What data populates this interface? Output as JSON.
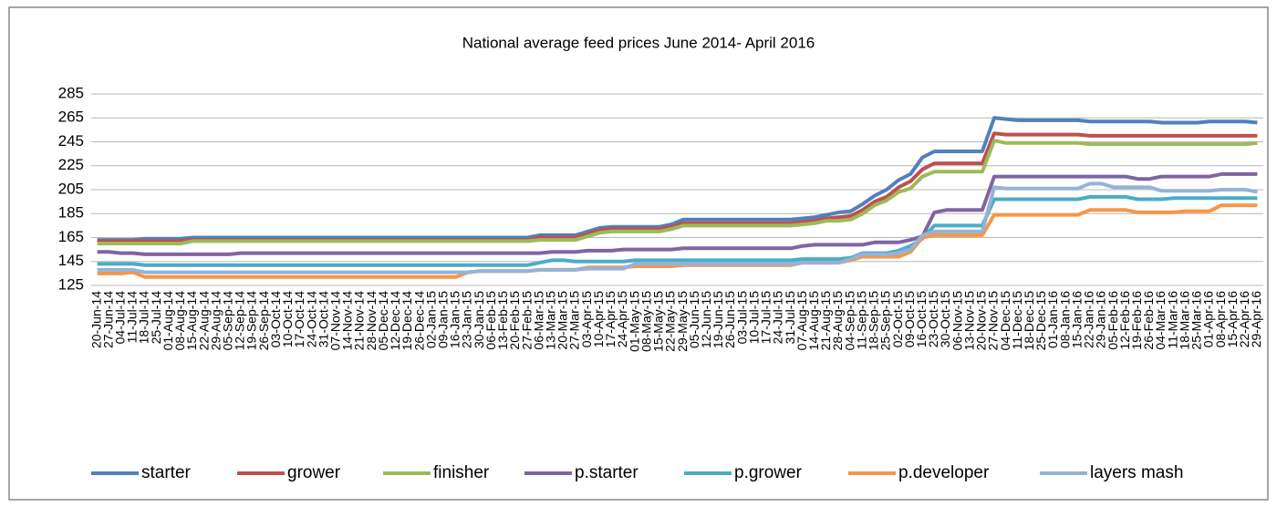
{
  "chart_data": {
    "type": "line",
    "title": "National average feed prices June 2014- April 2016",
    "categories": [
      "20-Jun-14",
      "27-Jun-14",
      "04-Jul-14",
      "11-Jul-14",
      "18-Jul-14",
      "25-Jul-14",
      "01-Aug-14",
      "08-Aug-14",
      "15-Aug-14",
      "22-Aug-14",
      "29-Aug-14",
      "05-Sep-14",
      "12-Sep-14",
      "19-Sep-14",
      "26-Sep-14",
      "03-Oct-14",
      "10-Oct-14",
      "17-Oct-14",
      "24-Oct-14",
      "31-Oct-14",
      "07-Nov-14",
      "14-Nov-14",
      "21-Nov-14",
      "28-Nov-14",
      "05-Dec-14",
      "12-Dec-14",
      "19-Dec-14",
      "26-Dec-14",
      "02-Jan-15",
      "09-Jan-15",
      "16-Jan-15",
      "23-Jan-15",
      "30-Jan-15",
      "06-Feb-15",
      "13-Feb-15",
      "20-Feb-15",
      "27-Feb-15",
      "06-Mar-15",
      "13-Mar-15",
      "20-Mar-15",
      "27-Mar-15",
      "03-Apr-15",
      "10-Apr-15",
      "17-Apr-15",
      "24-Apr-15",
      "01-May-15",
      "08-May-15",
      "15-May-15",
      "22-May-15",
      "29-May-15",
      "05-Jun-15",
      "12-Jun-15",
      "19-Jun-15",
      "26-Jun-15",
      "03-Jul-15",
      "10-Jul-15",
      "17-Jul-15",
      "24-Jul-15",
      "31-Jul-15",
      "07-Aug-15",
      "14-Aug-15",
      "21-Aug-15",
      "28-Aug-15",
      "04-Sep-15",
      "11-Sep-15",
      "18-Sep-15",
      "25-Sep-15",
      "02-Oct-15",
      "09-Oct-15",
      "16-Oct-15",
      "23-Oct-15",
      "30-Oct-15",
      "06-Nov-15",
      "13-Nov-15",
      "20-Nov-15",
      "27-Nov-15",
      "04-Dec-15",
      "11-Dec-15",
      "18-Dec-15",
      "25-Dec-15",
      "01-Jan-16",
      "08-Jan-16",
      "15-Jan-16",
      "22-Jan-16",
      "29-Jan-16",
      "05-Feb-16",
      "12-Feb-16",
      "19-Feb-16",
      "26-Feb-16",
      "04-Mar-16",
      "11-Mar-16",
      "18-Mar-16",
      "25-Mar-16",
      "01-Apr-16",
      "08-Apr-16",
      "15-Apr-16",
      "22-Apr-16",
      "29-Apr-16"
    ],
    "series": [
      {
        "name": "starter",
        "color": "#4f81bd",
        "values": [
          163,
          163,
          163,
          163,
          164,
          164,
          164,
          164,
          165,
          165,
          165,
          165,
          165,
          165,
          165,
          165,
          165,
          165,
          165,
          165,
          165,
          165,
          165,
          165,
          165,
          165,
          165,
          165,
          165,
          165,
          165,
          165,
          165,
          165,
          165,
          165,
          165,
          167,
          167,
          167,
          167,
          170,
          173,
          174,
          174,
          174,
          174,
          174,
          176,
          180,
          180,
          180,
          180,
          180,
          180,
          180,
          180,
          180,
          180,
          181,
          182,
          184,
          186,
          187,
          193,
          200,
          205,
          213,
          218,
          232,
          237,
          237,
          237,
          237,
          237,
          265,
          264,
          263,
          263,
          263,
          263,
          263,
          263,
          262,
          262,
          262,
          262,
          262,
          262,
          261,
          261,
          261,
          261,
          262,
          262,
          262,
          262,
          261
        ]
      },
      {
        "name": "grower",
        "color": "#c0504d",
        "values": [
          162,
          162,
          162,
          162,
          162,
          162,
          162,
          162,
          163,
          163,
          163,
          163,
          163,
          163,
          163,
          163,
          163,
          163,
          163,
          163,
          163,
          163,
          163,
          163,
          163,
          163,
          163,
          163,
          163,
          163,
          163,
          163,
          163,
          163,
          163,
          163,
          163,
          165,
          165,
          165,
          165,
          168,
          171,
          172,
          172,
          172,
          172,
          172,
          174,
          177,
          177,
          177,
          177,
          177,
          177,
          177,
          177,
          177,
          177,
          178,
          179,
          181,
          182,
          183,
          188,
          195,
          199,
          207,
          212,
          222,
          227,
          227,
          227,
          227,
          227,
          252,
          251,
          251,
          251,
          251,
          251,
          251,
          251,
          250,
          250,
          250,
          250,
          250,
          250,
          250,
          250,
          250,
          250,
          250,
          250,
          250,
          250,
          250
        ]
      },
      {
        "name": "finisher",
        "color": "#9bbb59",
        "values": [
          160,
          160,
          160,
          160,
          160,
          160,
          160,
          160,
          162,
          162,
          162,
          162,
          162,
          162,
          162,
          162,
          162,
          162,
          162,
          162,
          162,
          162,
          162,
          162,
          162,
          162,
          162,
          162,
          162,
          162,
          162,
          162,
          162,
          162,
          162,
          162,
          162,
          163,
          163,
          163,
          163,
          166,
          169,
          170,
          170,
          170,
          170,
          170,
          172,
          175,
          175,
          175,
          175,
          175,
          175,
          175,
          175,
          175,
          175,
          176,
          177,
          179,
          179,
          180,
          185,
          192,
          196,
          203,
          206,
          216,
          220,
          220,
          220,
          220,
          220,
          246,
          244,
          244,
          244,
          244,
          244,
          244,
          244,
          243,
          243,
          243,
          243,
          243,
          243,
          243,
          243,
          243,
          243,
          243,
          243,
          243,
          243,
          244
        ]
      },
      {
        "name": "p.starter",
        "color": "#8064a2",
        "values": [
          153,
          153,
          152,
          152,
          151,
          151,
          151,
          151,
          151,
          151,
          151,
          151,
          152,
          152,
          152,
          152,
          152,
          152,
          152,
          152,
          152,
          152,
          152,
          152,
          152,
          152,
          152,
          152,
          152,
          152,
          152,
          152,
          152,
          152,
          152,
          152,
          152,
          152,
          153,
          153,
          153,
          154,
          154,
          154,
          155,
          155,
          155,
          155,
          155,
          156,
          156,
          156,
          156,
          156,
          156,
          156,
          156,
          156,
          156,
          158,
          159,
          159,
          159,
          159,
          159,
          161,
          161,
          161,
          163,
          166,
          186,
          188,
          188,
          188,
          188,
          216,
          216,
          216,
          216,
          216,
          216,
          216,
          216,
          216,
          216,
          216,
          216,
          214,
          214,
          216,
          216,
          216,
          216,
          216,
          218,
          218,
          218,
          218
        ]
      },
      {
        "name": "p.grower",
        "color": "#4bacc6",
        "values": [
          143,
          143,
          143,
          143,
          142,
          142,
          142,
          142,
          142,
          142,
          142,
          142,
          142,
          142,
          142,
          142,
          142,
          142,
          142,
          142,
          142,
          142,
          142,
          142,
          142,
          142,
          142,
          142,
          142,
          142,
          142,
          142,
          142,
          142,
          142,
          142,
          142,
          144,
          146,
          146,
          145,
          145,
          145,
          145,
          145,
          146,
          146,
          146,
          146,
          146,
          146,
          146,
          146,
          146,
          146,
          146,
          146,
          146,
          146,
          147,
          147,
          147,
          147,
          148,
          152,
          152,
          152,
          154,
          158,
          164,
          175,
          175,
          175,
          175,
          175,
          197,
          197,
          197,
          197,
          197,
          197,
          197,
          197,
          199,
          199,
          199,
          199,
          197,
          197,
          197,
          198,
          198,
          198,
          198,
          198,
          198,
          198,
          198
        ]
      },
      {
        "name": "p.developer",
        "color": "#f79646",
        "values": [
          135,
          135,
          135,
          136,
          132,
          132,
          132,
          132,
          132,
          132,
          132,
          132,
          132,
          132,
          132,
          132,
          132,
          132,
          132,
          132,
          132,
          132,
          132,
          132,
          132,
          132,
          132,
          132,
          132,
          132,
          132,
          136,
          137,
          137,
          137,
          137,
          137,
          138,
          138,
          138,
          138,
          140,
          140,
          140,
          140,
          141,
          141,
          141,
          141,
          142,
          142,
          142,
          142,
          142,
          142,
          142,
          142,
          142,
          142,
          144,
          144,
          144,
          144,
          146,
          149,
          149,
          149,
          149,
          153,
          165,
          167,
          167,
          167,
          167,
          167,
          184,
          184,
          184,
          184,
          184,
          184,
          184,
          184,
          188,
          188,
          188,
          188,
          186,
          186,
          186,
          186,
          187,
          187,
          187,
          192,
          192,
          192,
          192
        ]
      },
      {
        "name": "layers mash",
        "color": "#95b3d7",
        "values": [
          138,
          138,
          138,
          138,
          136,
          136,
          136,
          136,
          136,
          136,
          136,
          136,
          136,
          136,
          136,
          136,
          136,
          136,
          136,
          136,
          136,
          136,
          136,
          136,
          136,
          136,
          136,
          136,
          136,
          136,
          136,
          136,
          137,
          137,
          137,
          137,
          137,
          138,
          138,
          138,
          138,
          139,
          139,
          139,
          139,
          143,
          143,
          143,
          143,
          143,
          143,
          143,
          143,
          143,
          143,
          143,
          143,
          143,
          143,
          144,
          144,
          144,
          144,
          147,
          151,
          151,
          151,
          152,
          155,
          167,
          170,
          170,
          170,
          170,
          170,
          207,
          206,
          206,
          206,
          206,
          206,
          206,
          206,
          210,
          210,
          207,
          207,
          207,
          207,
          204,
          204,
          204,
          204,
          204,
          205,
          205,
          205,
          203
        ]
      }
    ],
    "ylim": [
      125,
      285
    ],
    "yticks": [
      125,
      145,
      165,
      185,
      205,
      225,
      245,
      265,
      285
    ],
    "grid": true,
    "legend": "bottom"
  }
}
